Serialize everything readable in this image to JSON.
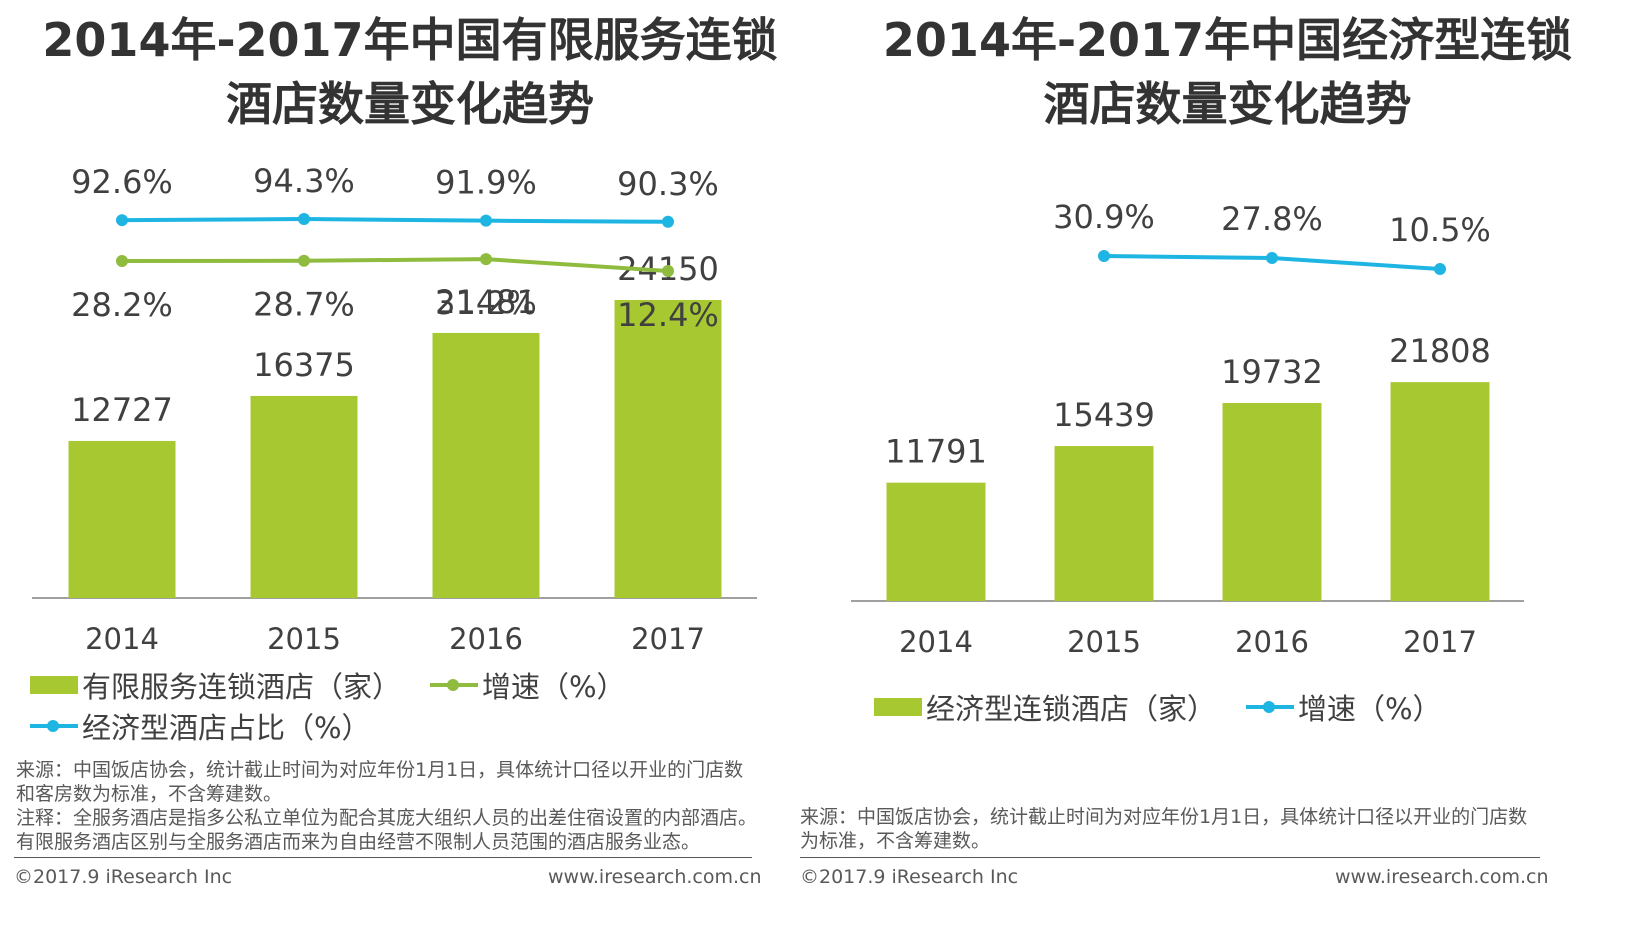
{
  "colors": {
    "bar": "#a7c830",
    "growth_line": "#8fbc3f",
    "share_line": "#1fb5e3",
    "axis": "#808080",
    "text": "#404040"
  },
  "left": {
    "title_line1": "2014年-2017年中国有限服务连锁",
    "title_line2": "酒店数量变化趋势",
    "legend": {
      "bar": "有限服务连锁酒店（家）",
      "growth": "增速（%）",
      "share": "经济型酒店占比（%）"
    },
    "notes": [
      "来源：中国饭店协会，统计截止时间为对应年份1月1日，具体统计口径以开业的门店数",
      "和客房数为标准，不含筹建数。",
      "注释：全服务酒店是指多公私立单位为配合其庞大组织人员的出差住宿设置的内部酒店。",
      "有限服务酒店区别与全服务酒店而来为自由经营不限制人员范围的酒店服务业态。"
    ],
    "copyright": "©2017.9 iResearch Inc",
    "website": "www.iresearch.com.cn"
  },
  "right": {
    "title_line1": "2014年-2017年中国经济型连锁",
    "title_line2": "酒店数量变化趋势",
    "legend": {
      "bar": "经济型连锁酒店（家）",
      "growth": "增速（%）"
    },
    "notes": [
      "来源：中国饭店协会，统计截止时间为对应年份1月1日，具体统计口径以开业的门店数",
      "为标准，不含筹建数。"
    ],
    "copyright": "©2017.9 iResearch Inc",
    "website": "www.iresearch.com.cn"
  },
  "chart_data": [
    {
      "type": "bar",
      "title": "2014年-2017年中国有限服务连锁酒店数量变化趋势",
      "categories": [
        "2014",
        "2015",
        "2016",
        "2017"
      ],
      "series": [
        {
          "name": "有限服务连锁酒店（家）",
          "type": "bar",
          "values": [
            12727,
            16375,
            21481,
            24150
          ],
          "labels": [
            "12727",
            "16375",
            "21481",
            "24150"
          ]
        },
        {
          "name": "经济型酒店占比（%）",
          "type": "line",
          "values": [
            92.6,
            94.3,
            91.9,
            90.3
          ],
          "labels": [
            "92.6%",
            "94.3%",
            "91.9%",
            "90.3%"
          ]
        },
        {
          "name": "增速（%）",
          "type": "line",
          "values": [
            28.2,
            28.7,
            31.2,
            12.4
          ],
          "labels": [
            "28.2%",
            "28.7%",
            "31.2%",
            "12.4%"
          ]
        }
      ],
      "ylim": [
        0,
        31000
      ],
      "legend_position": "bottom"
    },
    {
      "type": "bar",
      "title": "2014年-2017年中国经济型连锁酒店数量变化趋势",
      "categories": [
        "2014",
        "2015",
        "2016",
        "2017"
      ],
      "series": [
        {
          "name": "经济型连锁酒店（家）",
          "type": "bar",
          "values": [
            11791,
            15439,
            19732,
            21808
          ],
          "labels": [
            "11791",
            "15439",
            "19732",
            "21808"
          ]
        },
        {
          "name": "增速（%）",
          "type": "line",
          "values": [
            null,
            30.9,
            27.8,
            10.5
          ],
          "labels": [
            null,
            "30.9%",
            "27.8%",
            "10.5%"
          ]
        }
      ],
      "ylim": [
        0,
        28000
      ],
      "legend_position": "bottom"
    }
  ]
}
